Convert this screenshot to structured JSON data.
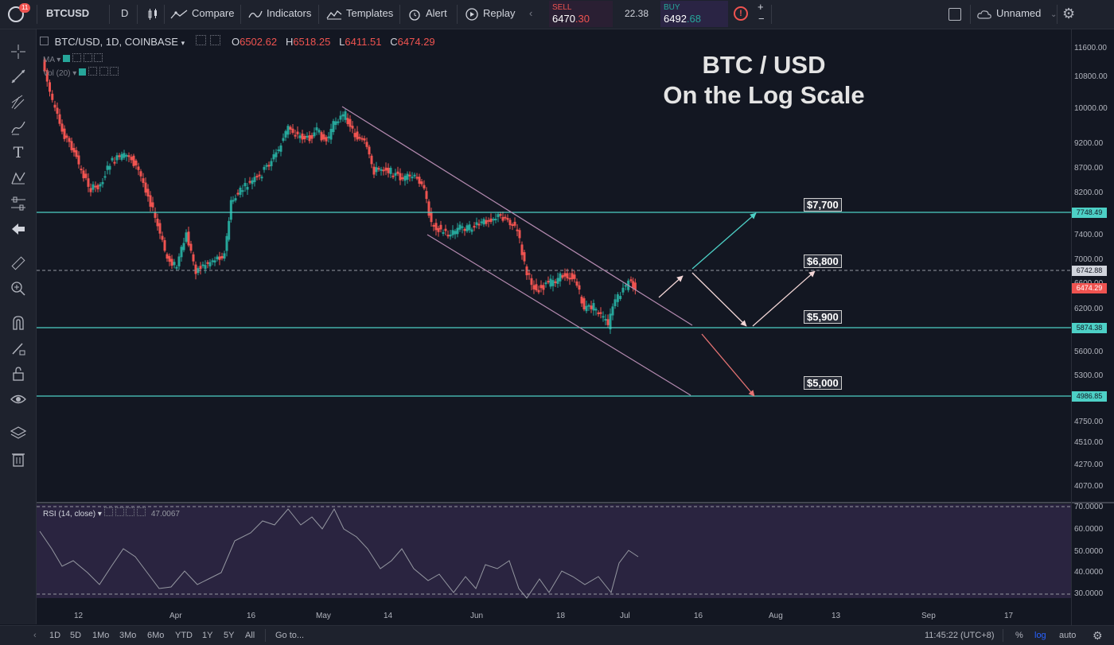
{
  "toolbar": {
    "notif_count": "11",
    "symbol": "BTCUSD",
    "interval": "D",
    "compare": "Compare",
    "indicators": "Indicators",
    "templates": "Templates",
    "alert": "Alert",
    "replay": "Replay",
    "sell_label": "SELL",
    "sell_price_a": "6470",
    "sell_price_b": ".30",
    "spread": "22.38",
    "buy_label": "BUY",
    "buy_price_a": "6492",
    "buy_price_b": ".68",
    "layout_name": "Unnamed"
  },
  "legend": {
    "symbol": "BTC/USD, 1D, COINBASE",
    "o_label": "O",
    "o_value": "6502.62",
    "h_label": "H",
    "h_value": "6518.25",
    "l_label": "L",
    "l_value": "6411.51",
    "c_label": "C",
    "c_value": "6474.29",
    "ma_label": "MA",
    "vol_label": "Vol (20)"
  },
  "annotation": {
    "title_line1": "BTC / USD",
    "title_line2": "On the Log Scale",
    "tag_7700": "$7,700",
    "tag_6800": "$6,800",
    "tag_5900": "$5,900",
    "tag_5000": "$5,000"
  },
  "price_axis": {
    "labels": [
      "11600.00",
      "10800.00",
      "10000.00",
      "9200.00",
      "8700.00",
      "8200.00",
      "7400.00",
      "7000.00",
      "6600.00",
      "6200.00",
      "5600.00",
      "5300.00",
      "4750.00",
      "4510.00",
      "4270.00",
      "4070.00"
    ],
    "box_7748": "7748.49",
    "box_6742": "6742.88",
    "box_last": "6474.29",
    "box_5874": "5874.38",
    "box_4986": "4986.85"
  },
  "rsi": {
    "label": "RSI (14, close)",
    "value": "47.0067",
    "axis_labels": [
      "70.0000",
      "60.0000",
      "50.0000",
      "40.0000",
      "30.0000"
    ]
  },
  "date_axis": [
    "12",
    "Apr",
    "16",
    "May",
    "14",
    "Jun",
    "18",
    "Jul",
    "16",
    "Aug",
    "13",
    "Sep",
    "17"
  ],
  "bottom": {
    "ranges": [
      "1D",
      "5D",
      "1Mo",
      "3Mo",
      "6Mo",
      "YTD",
      "1Y",
      "5Y",
      "All"
    ],
    "goto": "Go to...",
    "clock": "11:45:22 (UTC+8)",
    "pct": "%",
    "log": "log",
    "auto": "auto"
  },
  "colors": {
    "bg": "#131722",
    "up": "#26a69a",
    "down": "#ef5350",
    "hline": "#4dd0c6",
    "rsi_bg": "#2a2440"
  }
}
